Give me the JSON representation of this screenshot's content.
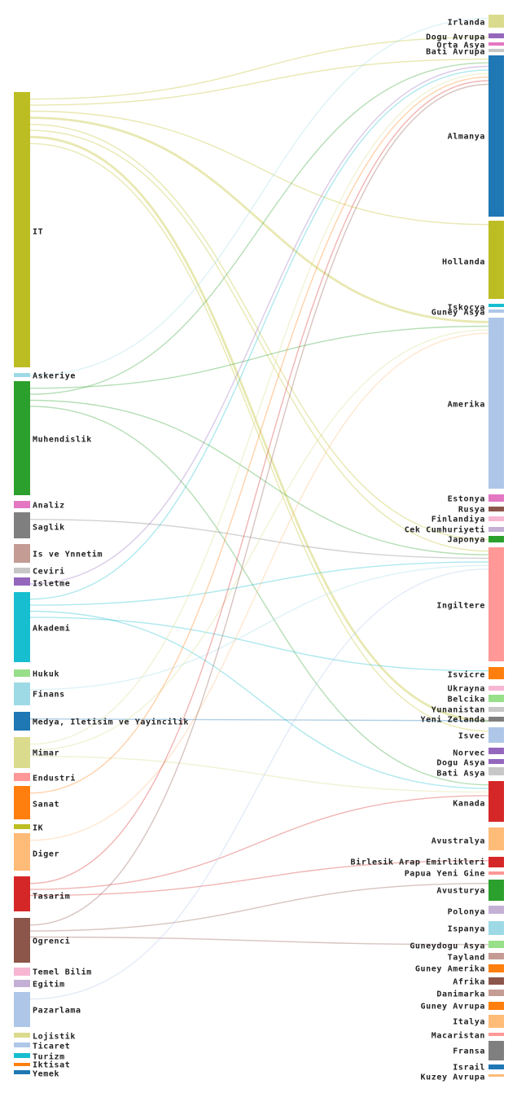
{
  "chart_data": {
    "type": "sankey",
    "title": "",
    "source_nodes": [
      {
        "label": "IT",
        "color": "#bcbd22"
      },
      {
        "label": "Askeriye",
        "color": "#9edae5"
      },
      {
        "label": "Muhendislik",
        "color": "#2ca02c"
      },
      {
        "label": "Analiz",
        "color": "#e377c2"
      },
      {
        "label": "Saglik",
        "color": "#7f7f7f"
      },
      {
        "label": "Is ve Ynnetim",
        "color": "#c49c94"
      },
      {
        "label": "Ceviri",
        "color": "#c7c7c7"
      },
      {
        "label": "Isletme",
        "color": "#9467bd"
      },
      {
        "label": "Akademi",
        "color": "#17becf"
      },
      {
        "label": "Hukuk",
        "color": "#98df8a"
      },
      {
        "label": "Finans",
        "color": "#9edae5"
      },
      {
        "label": "Medya, Iletisim ve Yayincilik",
        "color": "#1f77b4"
      },
      {
        "label": "Mimar",
        "color": "#dbdb8d"
      },
      {
        "label": "Endustri",
        "color": "#ff9896"
      },
      {
        "label": "Sanat",
        "color": "#ff7f0e"
      },
      {
        "label": "IK",
        "color": "#bcbd22"
      },
      {
        "label": "Diger",
        "color": "#ffbb78"
      },
      {
        "label": "Tasarim",
        "color": "#d62728"
      },
      {
        "label": "Ogrenci",
        "color": "#8c564b"
      },
      {
        "label": "Temel Bilim",
        "color": "#f7b6d2"
      },
      {
        "label": "Egitim",
        "color": "#c5b0d5"
      },
      {
        "label": "Pazarlama",
        "color": "#aec7e8"
      },
      {
        "label": "Lojistik",
        "color": "#dbdb8d"
      },
      {
        "label": "Ticaret",
        "color": "#aec7e8"
      },
      {
        "label": "Turizm",
        "color": "#17becf"
      },
      {
        "label": "Iktisat",
        "color": "#ff7f0e"
      },
      {
        "label": "Yemek",
        "color": "#1f77b4"
      }
    ],
    "target_nodes": [
      {
        "label": "Irlanda",
        "color": "#dbdb8d"
      },
      {
        "label": "Dogu Avrupa",
        "color": "#9467bd"
      },
      {
        "label": "Orta Asya",
        "color": "#e377c2"
      },
      {
        "label": "Bati Avrupa",
        "color": "#c7c7c7"
      },
      {
        "label": "Almanya",
        "color": "#1f77b4"
      },
      {
        "label": "Hollanda",
        "color": "#bcbd22"
      },
      {
        "label": "Iskocya",
        "color": "#17becf"
      },
      {
        "label": "Guney Asya",
        "color": "#aec7e8"
      },
      {
        "label": "Amerika",
        "color": "#aec7e8"
      },
      {
        "label": "Estonya",
        "color": "#e377c2"
      },
      {
        "label": "Rusya",
        "color": "#8c564b"
      },
      {
        "label": "Finlandiya",
        "color": "#f7b6d2"
      },
      {
        "label": "Cek Cumhuriyeti",
        "color": "#c5b0d5"
      },
      {
        "label": "Japonya",
        "color": "#2ca02c"
      },
      {
        "label": "Ingiltere",
        "color": "#ff9896"
      },
      {
        "label": "Isvicre",
        "color": "#ff7f0e"
      },
      {
        "label": "Ukrayna",
        "color": "#f7b6d2"
      },
      {
        "label": "Belcika",
        "color": "#98df8a"
      },
      {
        "label": "Yunanistan",
        "color": "#c7c7c7"
      },
      {
        "label": "Yeni Zelanda",
        "color": "#7f7f7f"
      },
      {
        "label": "Isvec",
        "color": "#aec7e8"
      },
      {
        "label": "Norvec",
        "color": "#9467bd"
      },
      {
        "label": "Dogu Asya",
        "color": "#9467bd"
      },
      {
        "label": "Bati Asya",
        "color": "#c7c7c7"
      },
      {
        "label": "Kanada",
        "color": "#d62728"
      },
      {
        "label": "Avustralya",
        "color": "#ffbb78"
      },
      {
        "label": "Birlesik Arap Emirlikleri",
        "color": "#d62728"
      },
      {
        "label": "Papua Yeni Gine",
        "color": "#ff9896"
      },
      {
        "label": "Avusturya",
        "color": "#2ca02c"
      },
      {
        "label": "Polonya",
        "color": "#c5b0d5"
      },
      {
        "label": "Ispanya",
        "color": "#9edae5"
      },
      {
        "label": "Guneydogu Asya",
        "color": "#98df8a"
      },
      {
        "label": "Tayland",
        "color": "#c49c94"
      },
      {
        "label": "Guney Amerika",
        "color": "#ff7f0e"
      },
      {
        "label": "Afrika",
        "color": "#8c564b"
      },
      {
        "label": "Danimarka",
        "color": "#c49c94"
      },
      {
        "label": "Guney Avrupa",
        "color": "#ff7f0e"
      },
      {
        "label": "Italya",
        "color": "#ffbb78"
      },
      {
        "label": "Macaristan",
        "color": "#ff9896"
      },
      {
        "label": "Fransa",
        "color": "#7f7f7f"
      },
      {
        "label": "Israil",
        "color": "#1f77b4"
      },
      {
        "label": "Kuzey Avrupa",
        "color": "#ffbb78"
      }
    ],
    "links": [
      {
        "source": "IT",
        "target": "Dogu Avrupa",
        "value": 1
      },
      {
        "source": "IT",
        "target": "Almanya",
        "value": 1
      },
      {
        "source": "IT",
        "target": "Hollanda",
        "value": 1
      },
      {
        "source": "IT",
        "target": "Amerika",
        "value": 2
      },
      {
        "source": "IT",
        "target": "Japonya",
        "value": 1
      },
      {
        "source": "IT",
        "target": "Ingiltere",
        "value": 1
      },
      {
        "source": "IT",
        "target": "Yeni Zelanda",
        "value": 2
      },
      {
        "source": "IT",
        "target": "Isvec",
        "value": 1
      },
      {
        "source": "Askeriye",
        "target": "Irlanda",
        "value": 1
      },
      {
        "source": "Muhendislik",
        "target": "Amerika",
        "value": 1
      },
      {
        "source": "Muhendislik",
        "target": "Almanya",
        "value": 1
      },
      {
        "source": "Muhendislik",
        "target": "Ingiltere",
        "value": 1
      },
      {
        "source": "Muhendislik",
        "target": "Kanada",
        "value": 1
      },
      {
        "source": "Saglik",
        "target": "Ingiltere",
        "value": 1
      },
      {
        "source": "Isletme",
        "target": "Almanya",
        "value": 1
      },
      {
        "source": "Akademi",
        "target": "Almanya",
        "value": 1
      },
      {
        "source": "Akademi",
        "target": "Ingiltere",
        "value": 1
      },
      {
        "source": "Akademi",
        "target": "Kanada",
        "value": 1
      },
      {
        "source": "Akademi",
        "target": "Isvicre",
        "value": 1
      },
      {
        "source": "Finans",
        "target": "Ingiltere",
        "value": 1
      },
      {
        "source": "Medya, Iletisim ve Yayincilik",
        "target": "Yeni Zelanda",
        "value": 1
      },
      {
        "source": "Mimar",
        "target": "Almanya",
        "value": 1
      },
      {
        "source": "Mimar",
        "target": "Amerika",
        "value": 1
      },
      {
        "source": "Mimar",
        "target": "Kanada",
        "value": 1
      },
      {
        "source": "Sanat",
        "target": "Almanya",
        "value": 1
      },
      {
        "source": "Diger",
        "target": "Amerika",
        "value": 1
      },
      {
        "source": "Tasarim",
        "target": "Almanya",
        "value": 1
      },
      {
        "source": "Tasarim",
        "target": "Kanada",
        "value": 1
      },
      {
        "source": "Tasarim",
        "target": "Birlesik Arap Emirlikleri",
        "value": 1
      },
      {
        "source": "Ogrenci",
        "target": "Almanya",
        "value": 1
      },
      {
        "source": "Ogrenci",
        "target": "Avusturya",
        "value": 1
      },
      {
        "source": "Ogrenci",
        "target": "Guneydogu Asya",
        "value": 1
      },
      {
        "source": "Pazarlama",
        "target": "Ingiltere",
        "value": 1
      }
    ],
    "legend": "none",
    "grid": false
  }
}
